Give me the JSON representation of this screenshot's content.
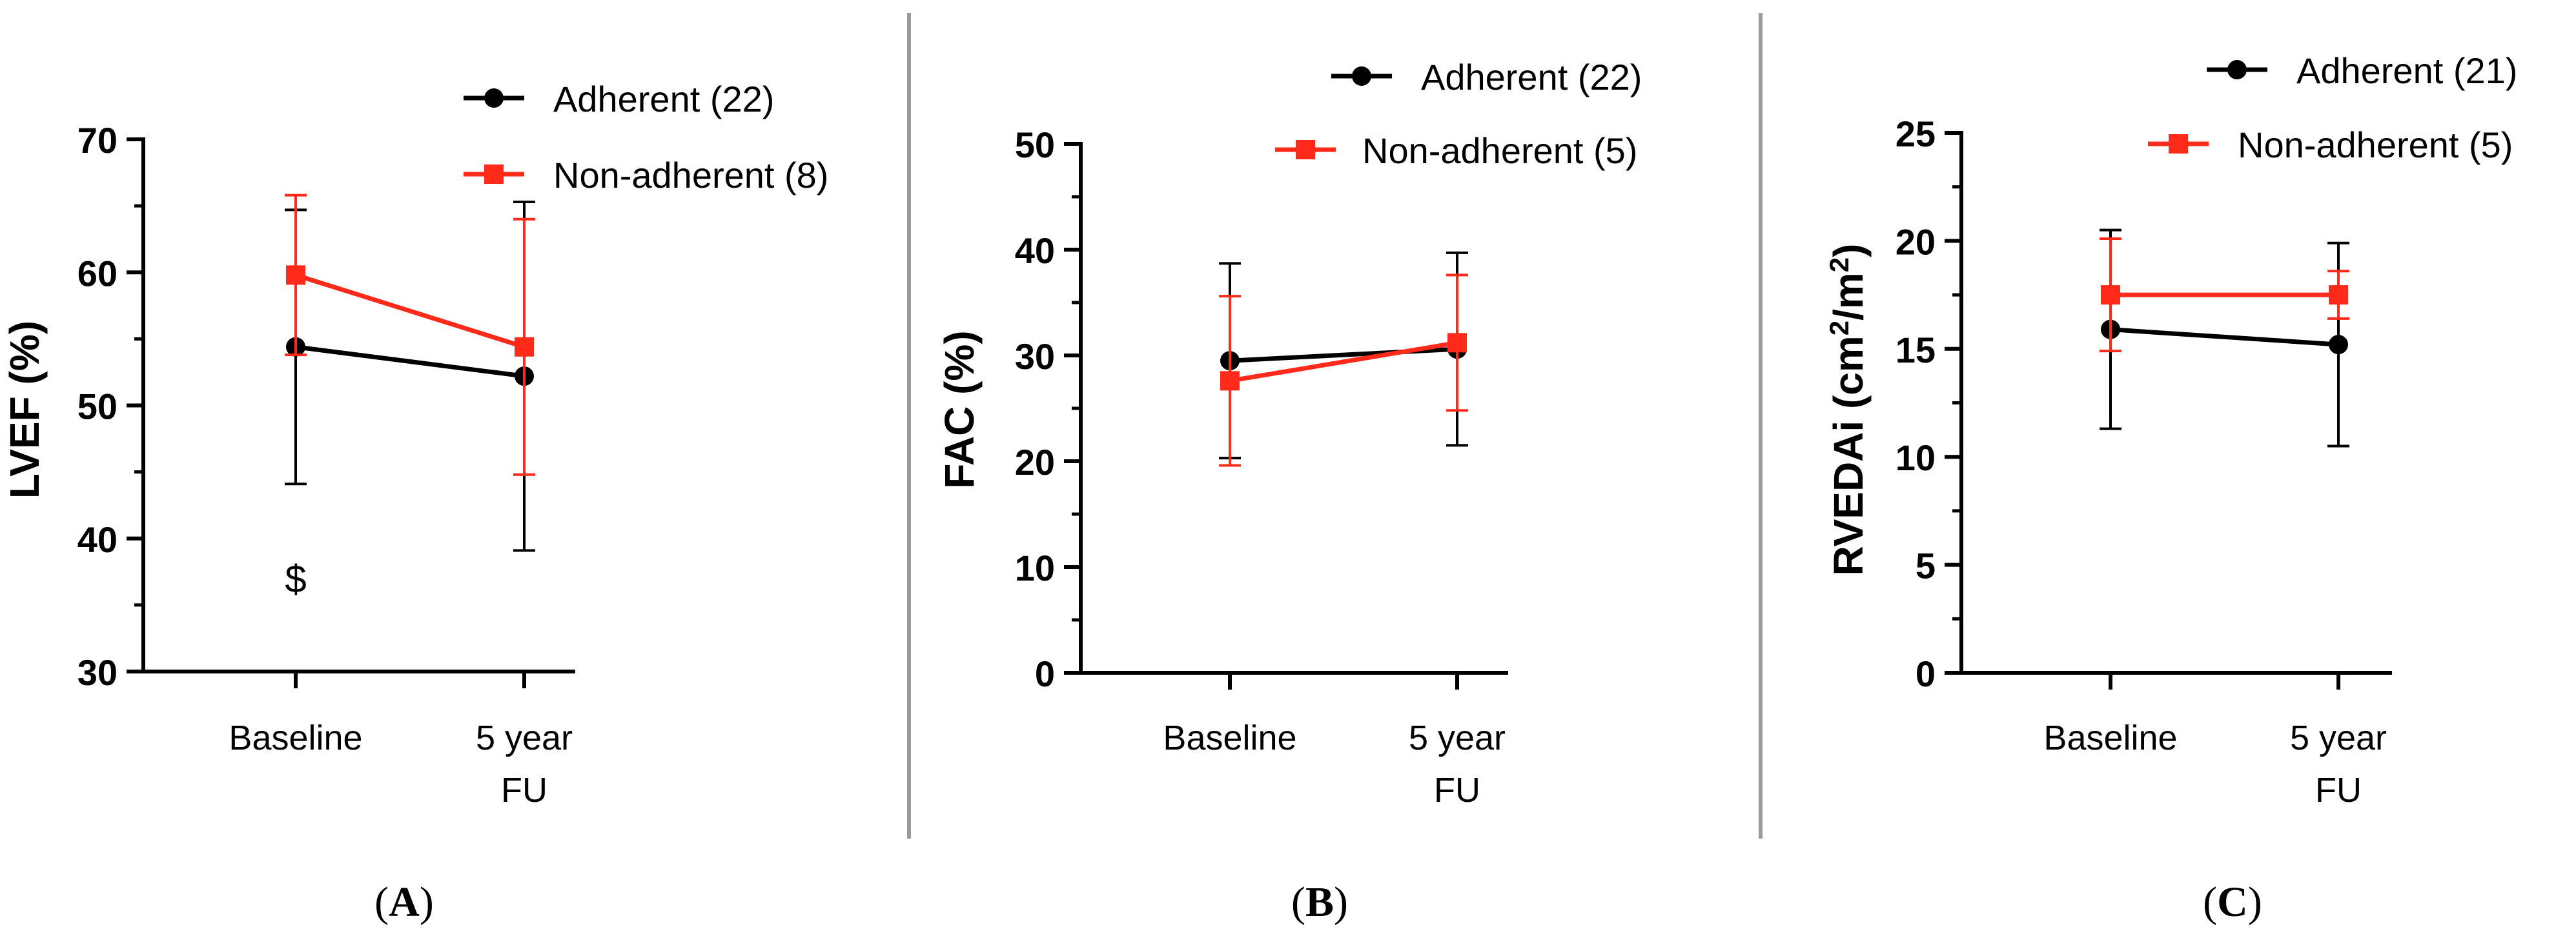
{
  "colors": {
    "adherent": "#000000",
    "non_adherent": "#ff2a1a",
    "axis": "#000000",
    "divider": "#9a9a9a"
  },
  "chart_data": [
    {
      "panel_label": "A",
      "panel_label_left": "(",
      "panel_label_right": ")",
      "type": "line",
      "ylabel": "LVEF (%)",
      "ylabel_sup1": "",
      "ylabel_mid": "",
      "ylabel_sup2": "",
      "ylabel_tail": "",
      "ylim": [
        30,
        70
      ],
      "yticks": [
        "30",
        "40",
        "50",
        "60",
        "70"
      ],
      "categories": [
        "Baseline",
        "5 year"
      ],
      "category_sublabels": [
        "",
        "FU"
      ],
      "series": [
        {
          "name": "Adherent (22)",
          "color_key": "adherent",
          "marker": "circle",
          "values": [
            54.4,
            52.2
          ],
          "error_low": [
            44.1,
            39.1
          ],
          "error_high": [
            64.7,
            65.3
          ]
        },
        {
          "name": "Non-adherent (8)",
          "color_key": "non_adherent",
          "marker": "square",
          "values": [
            59.8,
            54.4
          ],
          "error_low": [
            53.8,
            44.8
          ],
          "error_high": [
            65.8,
            64.0
          ]
        }
      ],
      "annotation": "$"
    },
    {
      "panel_label": "B",
      "panel_label_left": "(",
      "panel_label_right": ")",
      "type": "line",
      "ylabel": "FAC (%)",
      "ylabel_sup1": "",
      "ylabel_mid": "",
      "ylabel_sup2": "",
      "ylabel_tail": "",
      "ylim": [
        0,
        50
      ],
      "yticks": [
        "0",
        "10",
        "20",
        "30",
        "40",
        "50"
      ],
      "categories": [
        "Baseline",
        "5 year"
      ],
      "category_sublabels": [
        "",
        "FU"
      ],
      "series": [
        {
          "name": "Adherent (22)",
          "color_key": "adherent",
          "marker": "circle",
          "values": [
            29.5,
            30.6
          ],
          "error_low": [
            20.3,
            21.5
          ],
          "error_high": [
            38.7,
            39.7
          ]
        },
        {
          "name": "Non-adherent (5)",
          "color_key": "non_adherent",
          "marker": "square",
          "values": [
            27.6,
            31.2
          ],
          "error_low": [
            19.6,
            24.8
          ],
          "error_high": [
            35.6,
            37.6
          ]
        }
      ],
      "annotation": ""
    },
    {
      "panel_label": "C",
      "panel_label_left": "(",
      "panel_label_right": ")",
      "type": "line",
      "ylabel": "RVEDAi (cm",
      "ylabel_sup1": "2",
      "ylabel_mid": "/m",
      "ylabel_sup2": "2",
      "ylabel_tail": ")",
      "ylim": [
        0,
        25
      ],
      "yticks": [
        "0",
        "5",
        "10",
        "15",
        "20",
        "25"
      ],
      "categories": [
        "Baseline",
        "5 year"
      ],
      "category_sublabels": [
        "",
        "FU"
      ],
      "series": [
        {
          "name": "Adherent (21)",
          "color_key": "adherent",
          "marker": "circle",
          "values": [
            15.9,
            15.2
          ],
          "error_low": [
            11.3,
            10.5
          ],
          "error_high": [
            20.5,
            19.9
          ]
        },
        {
          "name": "Non-adherent (5)",
          "color_key": "non_adherent",
          "marker": "square",
          "values": [
            17.5,
            17.5
          ],
          "error_low": [
            14.9,
            16.4
          ],
          "error_high": [
            20.1,
            18.6
          ]
        }
      ],
      "annotation": ""
    }
  ]
}
